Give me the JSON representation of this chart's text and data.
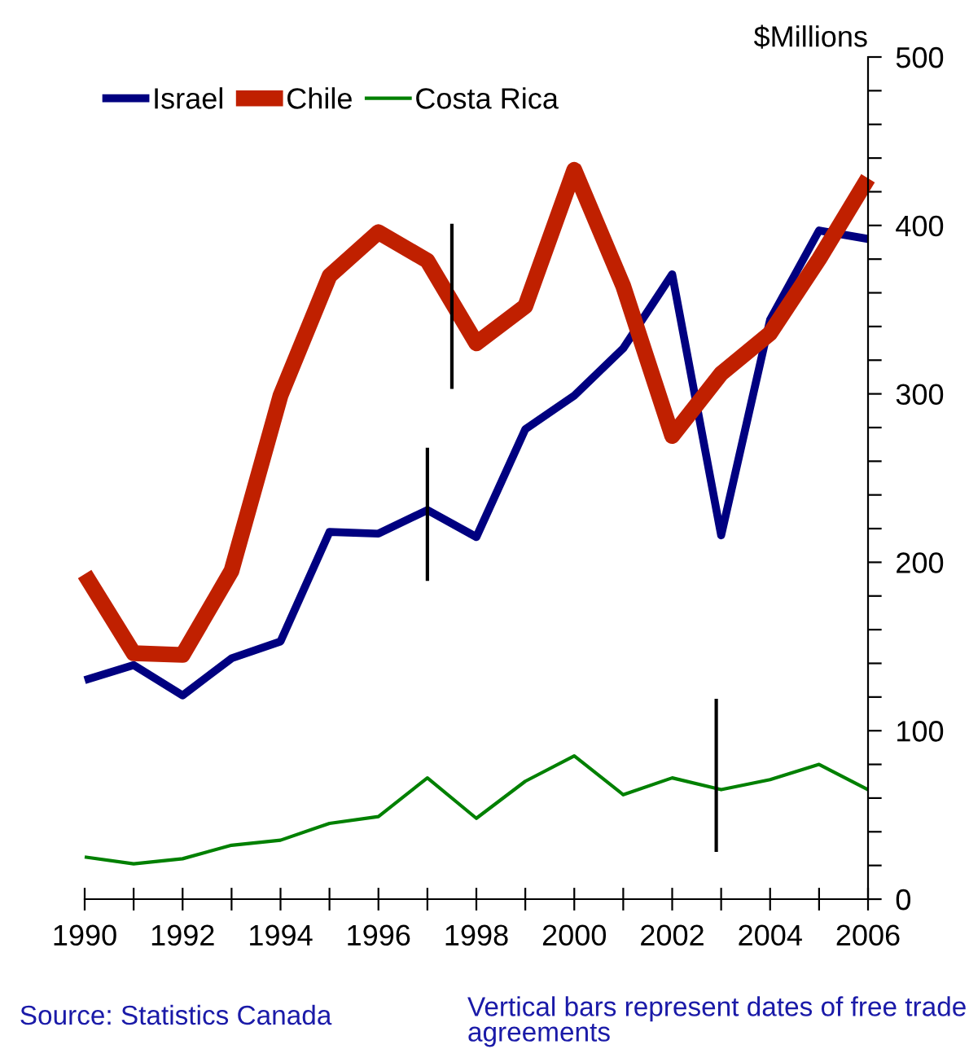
{
  "chart_data": {
    "type": "line",
    "ylabel": "$Millions",
    "x": [
      1990,
      1991,
      1992,
      1993,
      1994,
      1995,
      1996,
      1997,
      1998,
      1999,
      2000,
      2001,
      2002,
      2003,
      2004,
      2005,
      2006
    ],
    "series": [
      {
        "name": "Israel",
        "color": "#000080",
        "values": [
          130,
          139,
          121,
          143,
          153,
          218,
          217,
          231,
          215,
          279,
          299,
          327,
          371,
          216,
          344,
          397,
          392
        ]
      },
      {
        "name": "Chile",
        "color": "#c02000",
        "values": [
          193,
          146,
          145,
          195,
          299,
          370,
          396,
          379,
          330,
          352,
          433,
          364,
          275,
          312,
          336,
          380,
          428
        ]
      },
      {
        "name": "Costa Rica",
        "color": "#008000",
        "values": [
          25,
          21,
          24,
          32,
          35,
          45,
          49,
          72,
          48,
          70,
          85,
          62,
          72,
          65,
          71,
          80,
          65
        ]
      },
      {
        "color": "#000000",
        "x": [
          1997.5,
          1997.5
        ],
        "values": [
          303,
          401
        ]
      },
      {
        "color": "#000000",
        "x": [
          1997,
          1997
        ],
        "values": [
          189,
          268
        ]
      },
      {
        "color": "#000000",
        "x": [
          2002.9,
          2002.9
        ],
        "values": [
          28,
          119
        ]
      }
    ],
    "xlim": [
      1990,
      2006
    ],
    "xticks": [
      1990,
      {
        "value": 1991,
        "label": null
      },
      1992,
      {
        "value": 1993,
        "label": null
      },
      1994,
      {
        "value": 1995,
        "label": null
      },
      1996,
      {
        "value": 1997,
        "label": null
      },
      1998,
      {
        "value": 1999,
        "label": null
      },
      2000,
      {
        "value": 2001,
        "label": null
      },
      2002,
      {
        "value": 2003,
        "label": null
      },
      2004,
      {
        "value": 2005,
        "label": null
      },
      2006
    ],
    "ylim": [
      0,
      500
    ],
    "yticks": [
      0,
      {
        "value": 20,
        "label": null
      },
      {
        "value": 40,
        "label": null
      },
      {
        "value": 60,
        "label": null
      },
      {
        "value": 80,
        "label": null
      },
      100,
      {
        "value": 120,
        "label": null
      },
      {
        "value": 140,
        "label": null
      },
      {
        "value": 160,
        "label": null
      },
      {
        "value": 180,
        "label": null
      },
      200,
      {
        "value": 220,
        "label": null
      },
      {
        "value": 240,
        "label": null
      },
      {
        "value": 260,
        "label": null
      },
      {
        "value": 280,
        "label": null
      },
      300,
      {
        "value": 320,
        "label": null
      },
      {
        "value": 340,
        "label": null
      },
      {
        "value": 360,
        "label": null
      },
      {
        "value": 380,
        "label": null
      },
      400,
      {
        "value": 420,
        "label": null
      },
      {
        "value": 440,
        "label": null
      },
      {
        "value": 460,
        "label": null
      },
      {
        "value": 480,
        "label": null
      },
      500
    ],
    "grid": false,
    "legend": "top left",
    "marker": "none",
    "line_style": "solid",
    "annotations": [
      "Source: Statistics Canada",
      "Vertical bars represent dates of free trade agreements"
    ]
  }
}
